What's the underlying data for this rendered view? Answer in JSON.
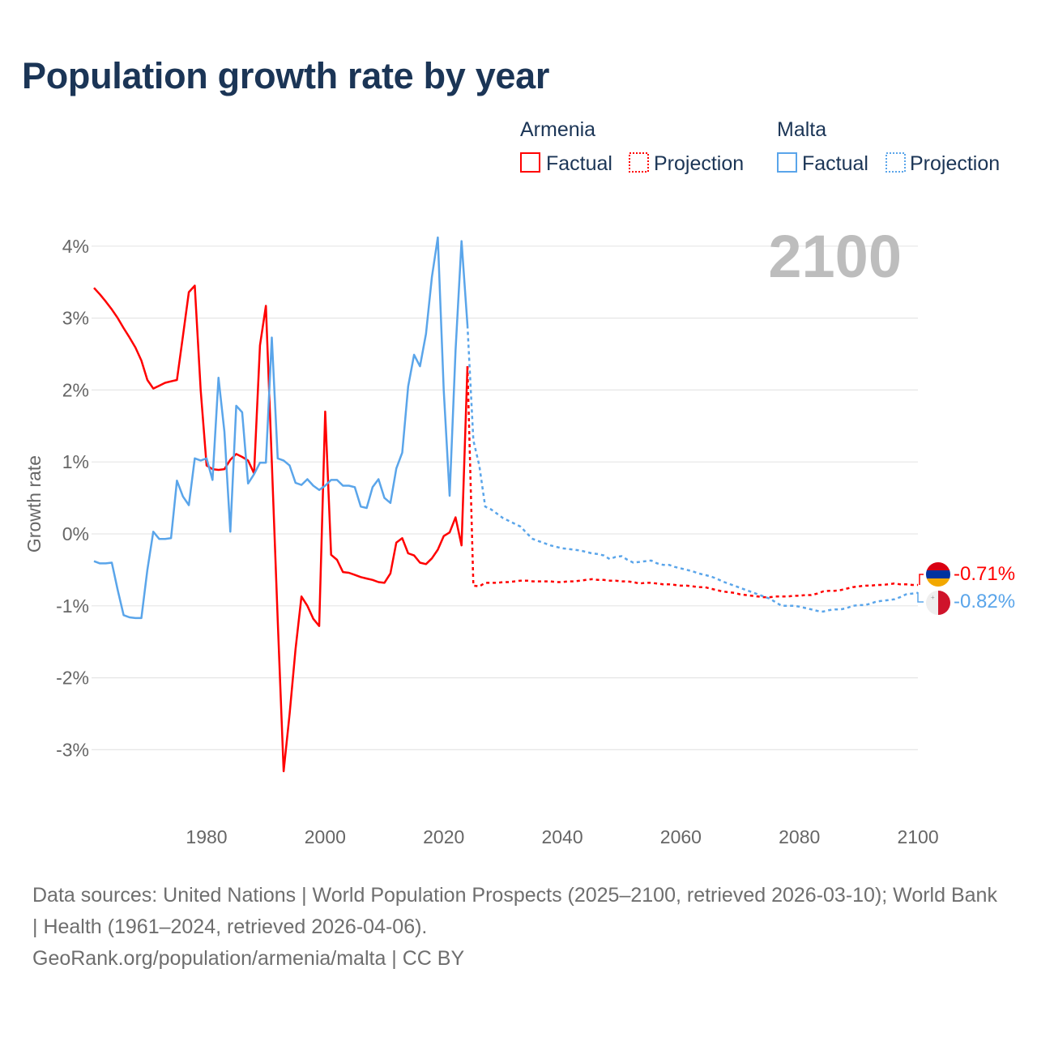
{
  "title": "Population growth rate by year",
  "legend": {
    "groups": [
      {
        "country": "Armenia",
        "factual": "Factual",
        "projection": "Projection",
        "color": "#ff0000"
      },
      {
        "country": "Malta",
        "factual": "Factual",
        "projection": "Projection",
        "color": "#5aa5ea"
      }
    ]
  },
  "year_display": "2100",
  "end_labels": {
    "armenia": "-0.71%",
    "malta": "-0.82%"
  },
  "footer": {
    "sources": "Data sources: United Nations | World Population Prospects (2025–2100, retrieved 2026-03-10); World Bank | Health (1961–2024, retrieved 2026-04-06).",
    "credit": "GeoRank.org/population/armenia/malta | CC BY"
  },
  "chart_data": {
    "type": "line",
    "title": "Population growth rate by year",
    "xlabel": "",
    "ylabel": "Growth rate",
    "xlim": [
      1961,
      2100
    ],
    "ylim": [
      -3.8,
      4.4
    ],
    "grid": true,
    "legend_position": "top-right",
    "x_ticks": [
      1980,
      2000,
      2020,
      2040,
      2060,
      2080,
      2100
    ],
    "x_tick_labels": [
      "1980",
      "2000",
      "2020",
      "2040",
      "2060",
      "2080",
      "2100"
    ],
    "y_ticks": [
      4,
      3,
      2,
      1,
      0,
      -1,
      -2,
      -3
    ],
    "y_tick_labels": [
      "4%",
      "3%",
      "2%",
      "1%",
      "0%",
      "-1%",
      "-2%",
      "-3%"
    ],
    "series": [
      {
        "name": "Armenia Factual",
        "x_start": 1961,
        "color": "#ff0000",
        "dashed": false,
        "values": [
          3.42,
          3.33,
          3.23,
          3.12,
          3.0,
          2.86,
          2.73,
          2.59,
          2.41,
          2.14,
          2.02,
          2.06,
          2.1,
          2.12,
          2.14,
          2.75,
          3.36,
          3.45,
          2.0,
          0.95,
          0.9,
          0.89,
          0.9,
          1.03,
          1.11,
          1.07,
          1.02,
          0.84,
          2.62,
          3.17,
          1.0,
          -1.2,
          -3.3,
          -2.5,
          -1.6,
          -0.87,
          -1.0,
          -1.18,
          -1.28,
          1.7,
          -0.29,
          -0.36,
          -0.53,
          -0.54,
          -0.57,
          -0.6,
          -0.62,
          -0.64,
          -0.67,
          -0.68,
          -0.55,
          -0.12,
          -0.06,
          -0.27,
          -0.3,
          -0.4,
          -0.42,
          -0.34,
          -0.22,
          -0.03,
          0.02,
          0.23,
          -0.16,
          2.33
        ]
      },
      {
        "name": "Armenia Projection",
        "x_start": 2024,
        "color": "#ff0000",
        "dashed": true,
        "values": [
          2.33,
          -0.72,
          -0.73,
          -0.68,
          -0.68,
          -0.68,
          -0.67,
          -0.67,
          -0.66,
          -0.65,
          -0.65,
          -0.66,
          -0.66,
          -0.66,
          -0.66,
          -0.67,
          -0.67,
          -0.66,
          -0.66,
          -0.65,
          -0.64,
          -0.63,
          -0.64,
          -0.64,
          -0.65,
          -0.65,
          -0.66,
          -0.66,
          -0.67,
          -0.69,
          -0.68,
          -0.68,
          -0.69,
          -0.7,
          -0.7,
          -0.71,
          -0.72,
          -0.72,
          -0.73,
          -0.74,
          -0.74,
          -0.76,
          -0.78,
          -0.8,
          -0.81,
          -0.82,
          -0.84,
          -0.85,
          -0.86,
          -0.87,
          -0.88,
          -0.88,
          -0.87,
          -0.87,
          -0.87,
          -0.86,
          -0.86,
          -0.85,
          -0.85,
          -0.83,
          -0.8,
          -0.79,
          -0.79,
          -0.78,
          -0.76,
          -0.74,
          -0.73,
          -0.72,
          -0.72,
          -0.71,
          -0.71,
          -0.7,
          -0.69,
          -0.7,
          -0.7,
          -0.71,
          -0.71
        ]
      },
      {
        "name": "Malta Factual",
        "x_start": 1961,
        "color": "#5aa5ea",
        "dashed": false,
        "values": [
          -0.38,
          -0.41,
          -0.41,
          -0.4,
          -0.78,
          -1.13,
          -1.16,
          -1.17,
          -1.17,
          -0.5,
          0.03,
          -0.07,
          -0.07,
          -0.06,
          0.74,
          0.52,
          0.4,
          1.05,
          1.02,
          1.05,
          0.75,
          2.17,
          1.42,
          0.03,
          1.78,
          1.69,
          0.7,
          0.83,
          0.99,
          0.99,
          2.73,
          1.05,
          1.02,
          0.95,
          0.71,
          0.68,
          0.76,
          0.67,
          0.61,
          0.67,
          0.75,
          0.75,
          0.67,
          0.67,
          0.65,
          0.38,
          0.36,
          0.65,
          0.76,
          0.5,
          0.43,
          0.91,
          1.13,
          2.05,
          2.49,
          2.33,
          2.78,
          3.57,
          4.12,
          2.0,
          0.53,
          2.55,
          4.07,
          2.9
        ]
      },
      {
        "name": "Malta Projection",
        "x_start": 2024,
        "color": "#5aa5ea",
        "dashed": true,
        "values": [
          2.9,
          1.3,
          0.95,
          0.38,
          0.34,
          0.28,
          0.22,
          0.18,
          0.14,
          0.1,
          0.01,
          -0.07,
          -0.1,
          -0.13,
          -0.16,
          -0.18,
          -0.2,
          -0.21,
          -0.22,
          -0.23,
          -0.25,
          -0.27,
          -0.28,
          -0.3,
          -0.35,
          -0.32,
          -0.31,
          -0.36,
          -0.4,
          -0.39,
          -0.38,
          -0.37,
          -0.41,
          -0.43,
          -0.43,
          -0.46,
          -0.48,
          -0.5,
          -0.52,
          -0.55,
          -0.57,
          -0.59,
          -0.62,
          -0.66,
          -0.69,
          -0.72,
          -0.75,
          -0.78,
          -0.81,
          -0.84,
          -0.87,
          -0.9,
          -0.95,
          -1.0,
          -1.0,
          -1.0,
          -1.01,
          -1.03,
          -1.05,
          -1.07,
          -1.08,
          -1.06,
          -1.05,
          -1.05,
          -1.03,
          -1.0,
          -0.99,
          -0.99,
          -0.97,
          -0.94,
          -0.93,
          -0.92,
          -0.91,
          -0.88,
          -0.84,
          -0.83,
          -0.82
        ]
      }
    ]
  }
}
